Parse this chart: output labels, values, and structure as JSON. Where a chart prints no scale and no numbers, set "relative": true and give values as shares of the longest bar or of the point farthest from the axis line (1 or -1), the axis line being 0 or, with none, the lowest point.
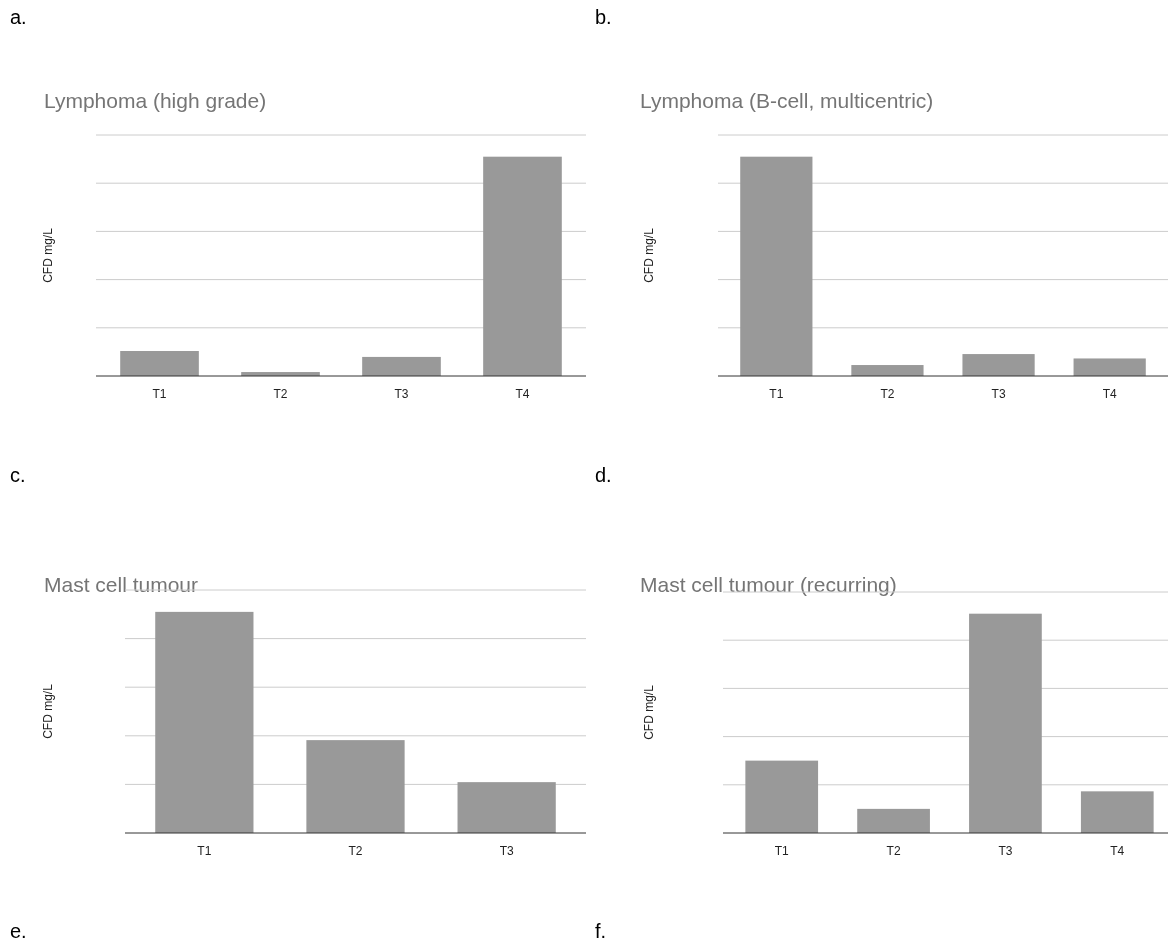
{
  "chart_data": [
    {
      "type": "bar",
      "title": "Lymphoma (high grade)",
      "ylabel": "CFD mg/L",
      "categories": [
        "T1",
        "T2",
        "T3",
        "T4"
      ],
      "values": [
        0.114,
        0.018,
        0.087,
        1
      ],
      "color": "#999999",
      "relative": true,
      "grid": "y",
      "annotations": [
        "a."
      ]
    },
    {
      "type": "bar",
      "title": "Lymphoma (B-cell, multicentric)",
      "ylabel": "CFD mg/L",
      "categories": [
        "T1",
        "T2",
        "T3",
        "T4"
      ],
      "values": [
        1,
        0.05,
        0.1,
        0.08
      ],
      "color": "#999999",
      "relative": true,
      "grid": "y",
      "annotations": [
        "b."
      ]
    },
    {
      "type": "bar",
      "title": "Mast cell tumour",
      "ylabel": "CFD mg/L",
      "categories": [
        "T1",
        "T2",
        "T3"
      ],
      "values": [
        1,
        0.42,
        0.23
      ],
      "color": "#999999",
      "relative": true,
      "grid": "y",
      "annotations": [
        "c."
      ]
    },
    {
      "type": "bar",
      "title": "Mast cell tumour (recurring)",
      "ylabel": "CFD mg/L",
      "categories": [
        "T1",
        "T2",
        "T3",
        "T4"
      ],
      "values": [
        0.33,
        0.11,
        1,
        0.19
      ],
      "color": "#999999",
      "relative": true,
      "grid": "y",
      "annotations": [
        "d."
      ]
    },
    {
      "type": "other",
      "annotations": [
        "e."
      ]
    },
    {
      "type": "other",
      "annotations": [
        "f."
      ]
    }
  ]
}
